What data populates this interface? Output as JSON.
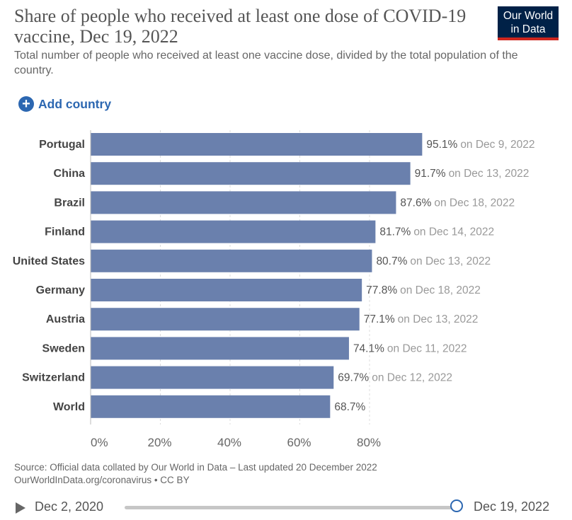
{
  "header": {
    "title": "Share of people who received at least one dose of COVID-19 vaccine, Dec 19, 2022",
    "subtitle": "Total number of people who received at least one vaccine dose, divided by the total population of the country.",
    "logo_line1": "Our World",
    "logo_line2": "in Data"
  },
  "controls": {
    "add_country_label": "Add country"
  },
  "colors": {
    "bar": "#6a80ad",
    "accent": "#2c67b1",
    "logo_bg": "#002147",
    "logo_stripe": "#ce261e"
  },
  "chart_data": {
    "type": "bar",
    "orientation": "horizontal",
    "title": "Share of people who received at least one dose of COVID-19 vaccine, Dec 19, 2022",
    "categories": [
      "Portugal",
      "China",
      "Brazil",
      "Finland",
      "United States",
      "Germany",
      "Austria",
      "Sweden",
      "Switzerland",
      "World"
    ],
    "values": [
      95.1,
      91.7,
      87.6,
      81.7,
      80.7,
      77.8,
      77.1,
      74.1,
      69.7,
      68.7
    ],
    "value_labels": [
      "95.1%",
      "91.7%",
      "87.6%",
      "81.7%",
      "80.7%",
      "77.8%",
      "77.1%",
      "74.1%",
      "69.7%",
      "68.7%"
    ],
    "dates": [
      "on Dec 9, 2022",
      "on Dec 13, 2022",
      "on Dec 18, 2022",
      "on Dec 14, 2022",
      "on Dec 13, 2022",
      "on Dec 18, 2022",
      "on Dec 13, 2022",
      "on Dec 11, 2022",
      "on Dec 12, 2022",
      ""
    ],
    "x_ticks": [
      0,
      20,
      40,
      60,
      80
    ],
    "x_tick_labels": [
      "0%",
      "20%",
      "40%",
      "60%",
      "80%"
    ],
    "xlim": [
      0,
      100
    ],
    "grid": "vertical-dashed",
    "xlabel": "",
    "ylabel": ""
  },
  "footer": {
    "source_line1": "Source: Official data collated by Our World in Data – Last updated 20 December 2022",
    "source_line2": "OurWorldInData.org/coronavirus • CC BY"
  },
  "timeline": {
    "start_label": "Dec 2, 2020",
    "end_label": "Dec 19, 2022",
    "position": 1.0
  }
}
